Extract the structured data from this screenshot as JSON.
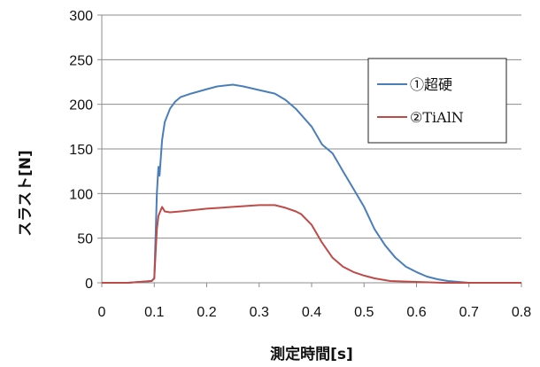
{
  "chart_data": {
    "type": "line",
    "title": "",
    "xlabel": "測定時間[s]",
    "ylabel": "スラスト[N]",
    "xlim": [
      0,
      0.8
    ],
    "ylim": [
      0,
      300
    ],
    "xticks": [
      0,
      0.1,
      0.2,
      0.3,
      0.4,
      0.5,
      0.6,
      0.7,
      0.8
    ],
    "yticks": [
      0,
      50,
      100,
      150,
      200,
      250,
      300
    ],
    "xtick_labels": [
      "0",
      "0.1",
      "0.2",
      "0.3",
      "0.4",
      "0.5",
      "0.6",
      "0.7",
      "0.8"
    ],
    "ytick_labels": [
      "0",
      "50",
      "100",
      "150",
      "200",
      "250",
      "300"
    ],
    "grid": "horizontal",
    "legend_position": "right",
    "series": [
      {
        "name": "①超硬",
        "color": "#4a7ebb",
        "x": [
          0,
          0.05,
          0.095,
          0.1,
          0.103,
          0.105,
          0.108,
          0.11,
          0.115,
          0.12,
          0.13,
          0.14,
          0.15,
          0.17,
          0.2,
          0.22,
          0.25,
          0.27,
          0.3,
          0.33,
          0.35,
          0.37,
          0.4,
          0.42,
          0.44,
          0.46,
          0.48,
          0.5,
          0.52,
          0.54,
          0.56,
          0.58,
          0.6,
          0.62,
          0.64,
          0.66,
          0.68,
          0.7,
          0.75,
          0.8
        ],
        "y": [
          0,
          0,
          2,
          5,
          60,
          100,
          130,
          120,
          160,
          180,
          195,
          203,
          208,
          212,
          217,
          220,
          222,
          220,
          216,
          212,
          205,
          195,
          175,
          155,
          145,
          125,
          105,
          85,
          60,
          42,
          28,
          18,
          12,
          7,
          4,
          2,
          1,
          0,
          0,
          0
        ]
      },
      {
        "name": "②TiAlN",
        "color": "#be4b48",
        "x": [
          0,
          0.05,
          0.095,
          0.1,
          0.105,
          0.108,
          0.11,
          0.115,
          0.12,
          0.13,
          0.15,
          0.2,
          0.25,
          0.3,
          0.33,
          0.35,
          0.37,
          0.38,
          0.4,
          0.42,
          0.44,
          0.46,
          0.48,
          0.5,
          0.52,
          0.55,
          0.6,
          0.65,
          0.7,
          0.8
        ],
        "y": [
          0,
          0,
          2,
          5,
          60,
          75,
          78,
          85,
          80,
          79,
          80,
          83,
          85,
          87,
          87,
          84,
          80,
          77,
          65,
          45,
          28,
          18,
          12,
          8,
          5,
          2,
          1,
          0,
          0,
          0
        ]
      }
    ]
  }
}
